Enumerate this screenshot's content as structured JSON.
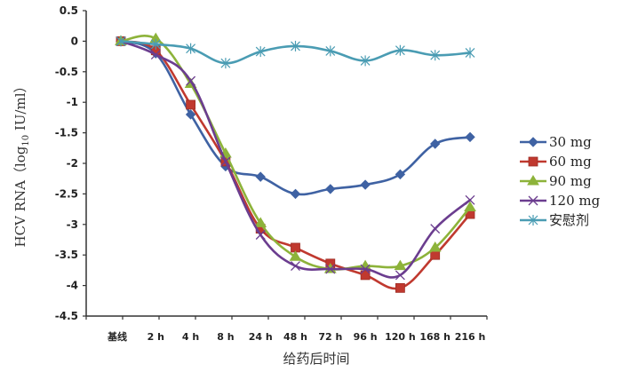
{
  "chart_data": {
    "type": "line",
    "title": "",
    "xlabel": "给药后时间",
    "ylabel": "HCV RNA（log10 IU/ml）",
    "ylabel_parts": {
      "prefix": "HCV RNA（log",
      "subscript": "10",
      "suffix": " IU/ml）"
    },
    "ylim": [
      -4.5,
      0.5
    ],
    "yticks": [
      0.5,
      0,
      -0.5,
      -1,
      -1.5,
      -2,
      -2.5,
      -3,
      -3.5,
      -4,
      -4.5
    ],
    "ytick_labels": [
      "0.5",
      "0",
      "-0.5",
      "-1",
      "-1.5",
      "-2",
      "-2.5",
      "-3",
      "-3.5",
      "-4",
      "-4.5"
    ],
    "categories": [
      "基线",
      "2 h",
      "4 h",
      "8 h",
      "24 h",
      "48 h",
      "72 h",
      "96 h",
      "120 h",
      "168 h",
      "216 h"
    ],
    "grid": false,
    "legend_position": "right",
    "series": [
      {
        "name": "30 mg",
        "color": "#3f62a3",
        "marker": "diamond",
        "values": [
          0,
          -0.2,
          -1.2,
          -2.05,
          -2.22,
          -2.5,
          -2.42,
          -2.35,
          -2.18,
          -1.68,
          -1.57
        ]
      },
      {
        "name": "60 mg",
        "color": "#c0392f",
        "marker": "square",
        "values": [
          0,
          -0.15,
          -1.04,
          -1.97,
          -3.07,
          -3.38,
          -3.64,
          -3.83,
          -4.04,
          -3.5,
          -2.83
        ]
      },
      {
        "name": "90 mg",
        "color": "#8db33a",
        "marker": "triangle",
        "values": [
          0,
          0.04,
          -0.7,
          -1.84,
          -2.98,
          -3.53,
          -3.73,
          -3.68,
          -3.68,
          -3.38,
          -2.72
        ]
      },
      {
        "name": "120 mg",
        "color": "#6b3d8f",
        "marker": "x",
        "values": [
          0,
          -0.22,
          -0.65,
          -1.97,
          -3.17,
          -3.68,
          -3.73,
          -3.73,
          -3.83,
          -3.07,
          -2.6
        ]
      },
      {
        "name": "安慰剂",
        "color": "#4a9cb3",
        "marker": "asterisk",
        "values": [
          0,
          -0.05,
          -0.12,
          -0.36,
          -0.17,
          -0.08,
          -0.16,
          -0.32,
          -0.15,
          -0.23,
          -0.19
        ]
      }
    ]
  }
}
